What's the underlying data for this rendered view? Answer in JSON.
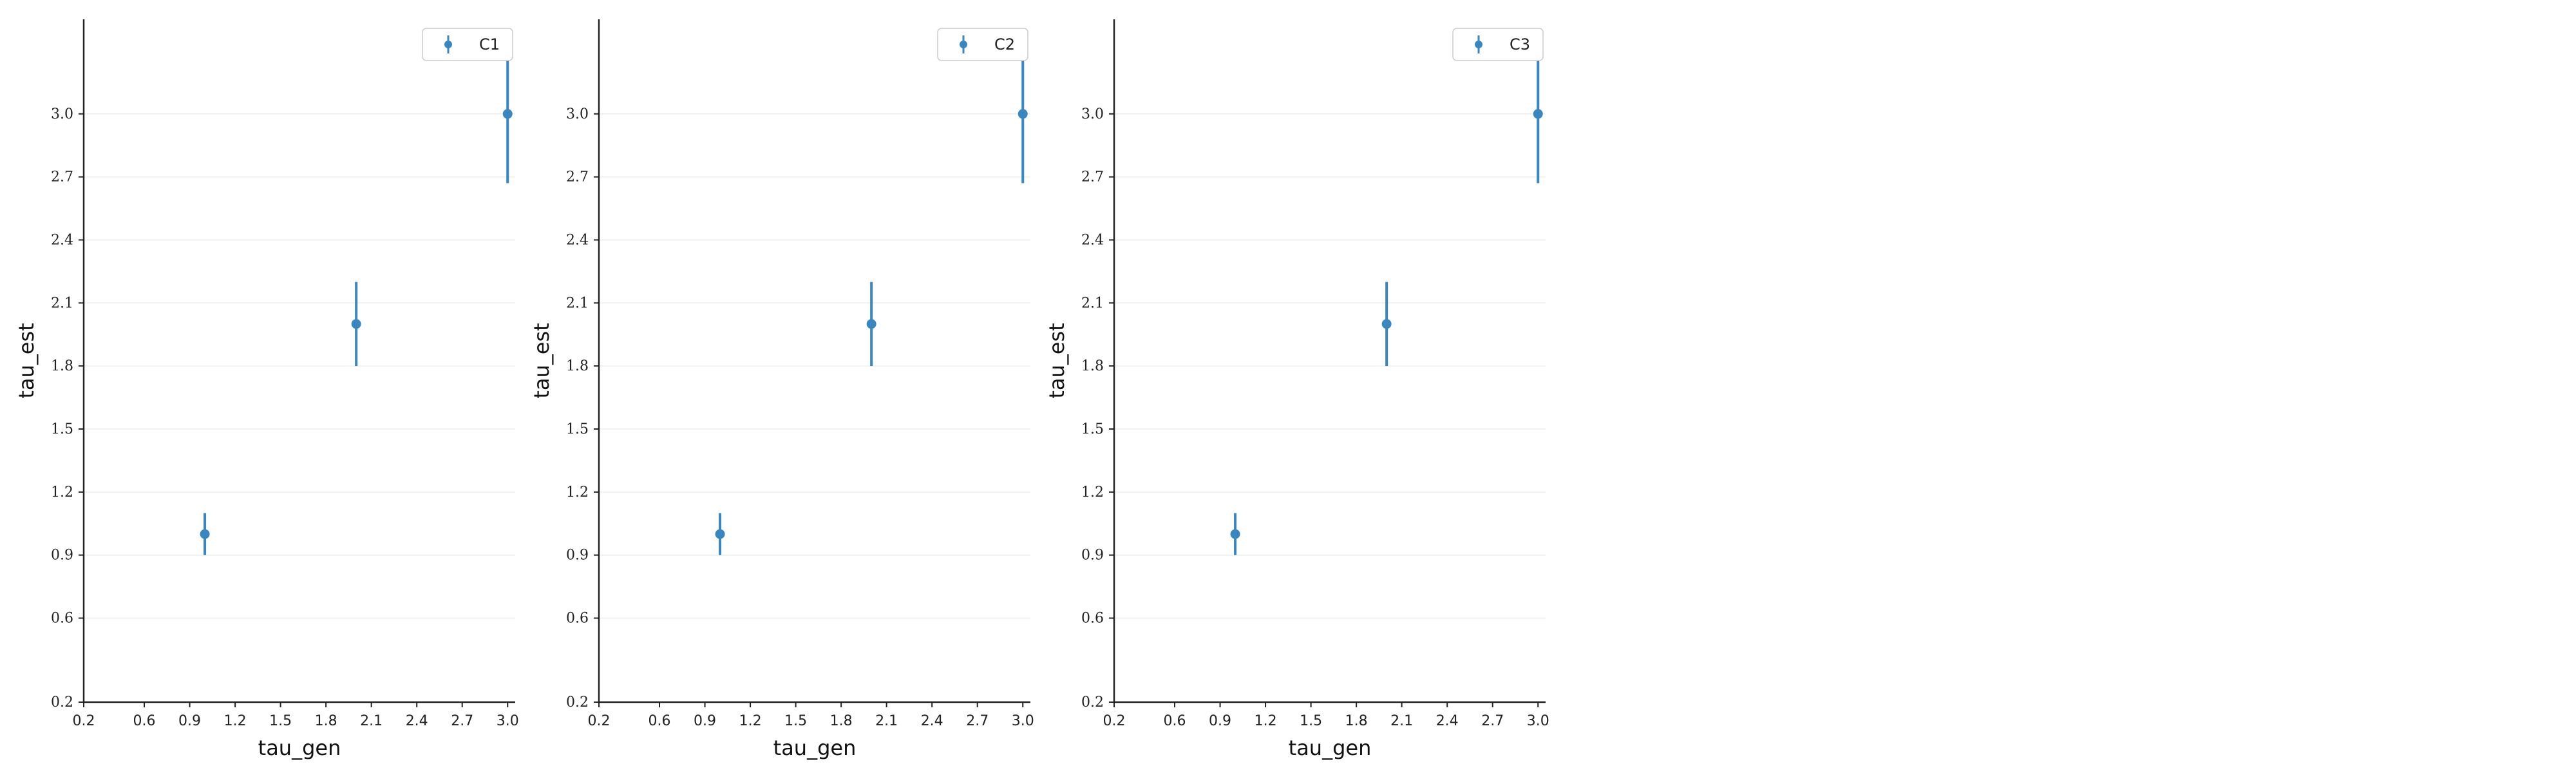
{
  "colors": {
    "series": "#3a86c0",
    "axis": "#222222",
    "grid": "#eeeeee",
    "legend_border": "#cccccc"
  },
  "chart_data": [
    {
      "type": "scatter",
      "title": "",
      "xlabel": "tau_gen",
      "ylabel": "tau_est",
      "xlim": [
        0.2,
        3.05
      ],
      "ylim": [
        0.2,
        3.45
      ],
      "xticks": [
        0.2,
        0.6,
        0.9,
        1.2,
        1.5,
        1.8,
        2.1,
        2.4,
        2.7,
        3.0
      ],
      "yticks": [
        0.2,
        0.6,
        0.9,
        1.2,
        1.5,
        1.8,
        2.1,
        2.4,
        2.7,
        3.0
      ],
      "xtick_labels": [
        "0.2",
        "0.6",
        "0.9",
        "1.2",
        "1.5",
        "1.8",
        "2.1",
        "2.4",
        "2.7",
        "3.0"
      ],
      "ytick_labels": [
        "0.2",
        "0.6",
        "0.9",
        "1.2",
        "1.5",
        "1.8",
        "2.1",
        "2.4",
        "2.7",
        "3.0"
      ],
      "grid": "horizontal",
      "legend_position": "top-right",
      "series": [
        {
          "name": "C1",
          "x": [
            1.0,
            2.0,
            3.0
          ],
          "y": [
            1.0,
            2.0,
            3.0
          ],
          "yerr_low": [
            0.1,
            0.2,
            0.33
          ],
          "yerr_high": [
            0.1,
            0.2,
            0.3
          ]
        }
      ]
    },
    {
      "type": "scatter",
      "title": "",
      "xlabel": "tau_gen",
      "ylabel": "tau_est",
      "xlim": [
        0.2,
        3.05
      ],
      "ylim": [
        0.2,
        3.45
      ],
      "xticks": [
        0.2,
        0.6,
        0.9,
        1.2,
        1.5,
        1.8,
        2.1,
        2.4,
        2.7,
        3.0
      ],
      "yticks": [
        0.2,
        0.6,
        0.9,
        1.2,
        1.5,
        1.8,
        2.1,
        2.4,
        2.7,
        3.0
      ],
      "xtick_labels": [
        "0.2",
        "0.6",
        "0.9",
        "1.2",
        "1.5",
        "1.8",
        "2.1",
        "2.4",
        "2.7",
        "3.0"
      ],
      "ytick_labels": [
        "0.2",
        "0.6",
        "0.9",
        "1.2",
        "1.5",
        "1.8",
        "2.1",
        "2.4",
        "2.7",
        "3.0"
      ],
      "grid": "horizontal",
      "legend_position": "top-right",
      "series": [
        {
          "name": "C2",
          "x": [
            1.0,
            2.0,
            3.0
          ],
          "y": [
            1.0,
            2.0,
            3.0
          ],
          "yerr_low": [
            0.1,
            0.2,
            0.33
          ],
          "yerr_high": [
            0.1,
            0.2,
            0.3
          ]
        }
      ]
    },
    {
      "type": "scatter",
      "title": "",
      "xlabel": "tau_gen",
      "ylabel": "tau_est",
      "xlim": [
        0.2,
        3.05
      ],
      "ylim": [
        0.2,
        3.45
      ],
      "xticks": [
        0.2,
        0.6,
        0.9,
        1.2,
        1.5,
        1.8,
        2.1,
        2.4,
        2.7,
        3.0
      ],
      "yticks": [
        0.2,
        0.6,
        0.9,
        1.2,
        1.5,
        1.8,
        2.1,
        2.4,
        2.7,
        3.0
      ],
      "xtick_labels": [
        "0.2",
        "0.6",
        "0.9",
        "1.2",
        "1.5",
        "1.8",
        "2.1",
        "2.4",
        "2.7",
        "3.0"
      ],
      "ytick_labels": [
        "0.2",
        "0.6",
        "0.9",
        "1.2",
        "1.5",
        "1.8",
        "2.1",
        "2.4",
        "2.7",
        "3.0"
      ],
      "grid": "horizontal",
      "legend_position": "top-right",
      "series": [
        {
          "name": "C3",
          "x": [
            1.0,
            2.0,
            3.0
          ],
          "y": [
            1.0,
            2.0,
            3.0
          ],
          "yerr_low": [
            0.1,
            0.2,
            0.33
          ],
          "yerr_high": [
            0.1,
            0.2,
            0.3
          ]
        }
      ]
    }
  ]
}
